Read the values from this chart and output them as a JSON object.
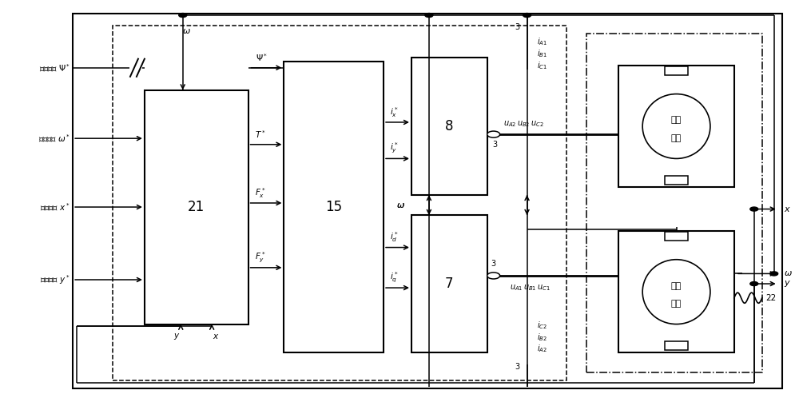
{
  "bg": "#ffffff",
  "fig_w": 10.0,
  "fig_h": 5.08,
  "dpi": 100,
  "outer": [
    0.09,
    0.04,
    0.89,
    0.93
  ],
  "dashed_ctrl": [
    0.14,
    0.06,
    0.57,
    0.88
  ],
  "dashdot_motor": [
    0.735,
    0.08,
    0.22,
    0.84
  ],
  "b21": [
    0.18,
    0.2,
    0.13,
    0.58
  ],
  "b15": [
    0.355,
    0.13,
    0.125,
    0.72
  ],
  "b7": [
    0.515,
    0.13,
    0.095,
    0.34
  ],
  "b8": [
    0.515,
    0.52,
    0.095,
    0.34
  ],
  "btq": [
    0.775,
    0.13,
    0.145,
    0.3
  ],
  "blv": [
    0.775,
    0.54,
    0.145,
    0.3
  ]
}
